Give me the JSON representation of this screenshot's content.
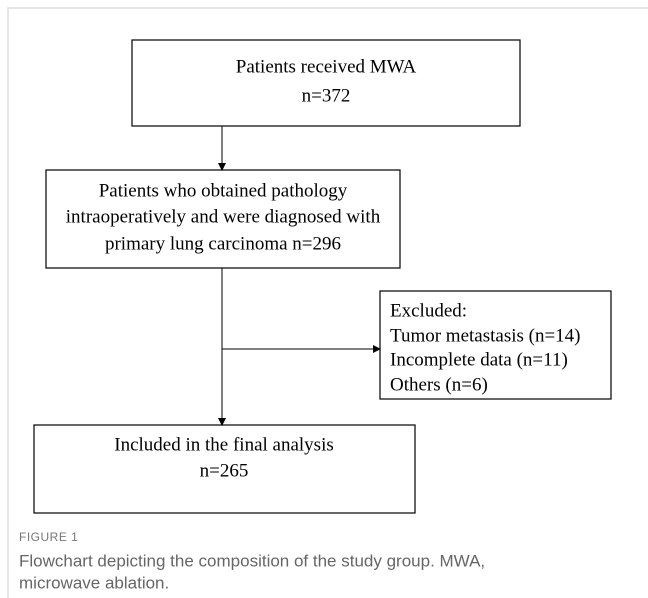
{
  "nodes": [
    {
      "lines": [
        "Patients received MWA",
        "n=372"
      ]
    },
    {
      "lines": [
        "Patients who obtained pathology",
        "intraoperatively and were diagnosed with",
        "primary lung carcinoma n=296"
      ]
    },
    {
      "lines": [
        "Excluded:",
        "Tumor metastasis (n=14)",
        "Incomplete data (n=11)",
        "Others (n=6)"
      ]
    },
    {
      "lines": [
        "Included in the final analysis",
        "n=265"
      ]
    }
  ],
  "caption": {
    "label": "FIGURE 1",
    "lines": [
      "Flowchart depicting the composition of the study group. MWA,",
      "microwave ablation."
    ]
  }
}
